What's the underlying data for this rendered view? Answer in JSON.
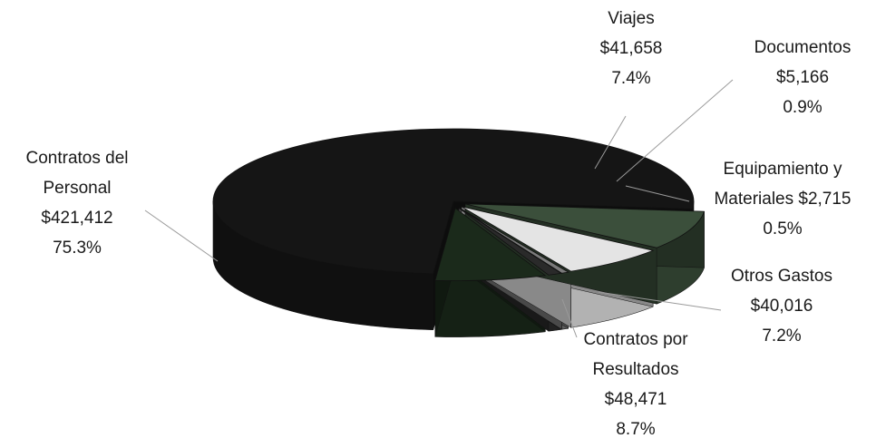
{
  "chart_data": {
    "type": "pie",
    "style": "3d",
    "categories": [
      "Contratos del Personal",
      "Viajes",
      "Documentos",
      "Equipamiento y Materiales",
      "Otros Gastos",
      "Contratos por Resultados"
    ],
    "values": [
      421412,
      41658,
      5166,
      2715,
      40016,
      48471
    ],
    "percentages": [
      75.3,
      7.4,
      0.9,
      0.5,
      7.2,
      8.7
    ],
    "slices": [
      {
        "name": "Contratos del Personal",
        "lines": [
          "Contratos del",
          "Personal",
          "$421,412",
          "75.3%"
        ],
        "value": 421412,
        "percent": 75.3,
        "color": "#151515",
        "exploded": false
      },
      {
        "name": "Viajes",
        "lines": [
          "Viajes",
          "$41,658",
          "7.4%"
        ],
        "value": 41658,
        "percent": 7.4,
        "color": "#1b2a1b",
        "exploded": true
      },
      {
        "name": "Documentos",
        "lines": [
          "Documentos",
          "$5,166",
          "0.9%"
        ],
        "value": 5166,
        "percent": 0.9,
        "color": "#2a2a2a",
        "exploded": true
      },
      {
        "name": "Equipamiento y Materiales",
        "lines": [
          "Equipamiento y",
          "Materiales  $2,715",
          "0.5%"
        ],
        "value": 2715,
        "percent": 0.5,
        "color": "#7a7a7a",
        "exploded": true
      },
      {
        "name": "Otros Gastos",
        "lines": [
          "Otros Gastos",
          "$40,016",
          "7.2%"
        ],
        "value": 40016,
        "percent": 7.2,
        "color": "#e4e4e4",
        "exploded": true
      },
      {
        "name": "Contratos por Resultados",
        "lines": [
          "Contratos por",
          "Resultados",
          "$48,471",
          "8.7%"
        ],
        "value": 48471,
        "percent": 8.7,
        "color": "#3b4f3b",
        "exploded": true
      }
    ],
    "title": "",
    "legend": "none"
  }
}
